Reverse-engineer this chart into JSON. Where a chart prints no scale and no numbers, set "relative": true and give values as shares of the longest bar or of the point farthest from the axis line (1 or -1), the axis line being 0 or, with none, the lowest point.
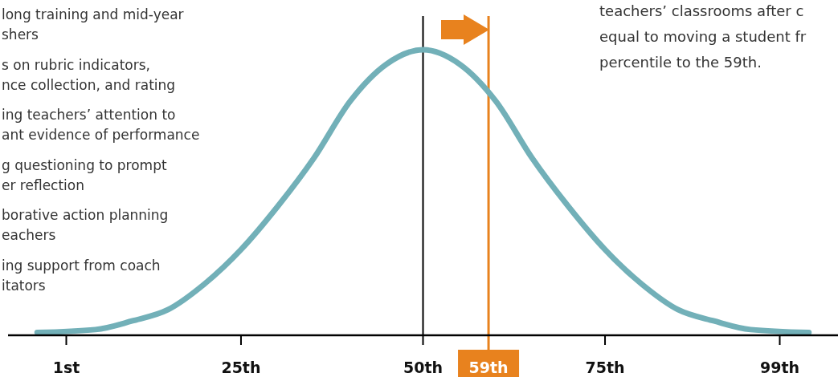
{
  "chart_data": {
    "type": "line",
    "relative": true,
    "x": [
      -3,
      5,
      10,
      15,
      20,
      25,
      30,
      35,
      40,
      45,
      50,
      55,
      60,
      65,
      70,
      75,
      80,
      85,
      90,
      95,
      103
    ],
    "series": [
      {
        "color": "#72b0b8",
        "values": [
          0.01,
          0.02,
          0.05,
          0.09,
          0.18,
          0.3,
          0.45,
          0.62,
          0.82,
          0.95,
          1,
          0.95,
          0.82,
          0.62,
          0.45,
          0.3,
          0.18,
          0.09,
          0.05,
          0.02,
          0.01
        ]
      }
    ],
    "xlim": [
      -7,
      107
    ],
    "xticks": [
      {
        "value": 1,
        "label": "1st"
      },
      {
        "value": 25,
        "label": "25th"
      },
      {
        "value": 50,
        "label": "50th"
      },
      {
        "value": 75,
        "label": "75th"
      },
      {
        "value": 99,
        "label": "99th"
      }
    ],
    "ref_lines": [
      {
        "axis": "x",
        "value": 50,
        "label": null,
        "color": "#000000"
      },
      {
        "axis": "x",
        "value": 59,
        "label": "59th",
        "color": "#e8821e"
      }
    ],
    "annotations": [
      "long training and mid-year\nshers",
      "s on rubric indicators,\nnce collection, and rating",
      "ing teachers’ attention to\nant evidence of performance",
      "g questioning to prompt\ner reflection",
      "borative action planning\neachers",
      "ing support from coach\nitators",
      "teachers’ classrooms after c\nequal to moving a student fr\npercentile to the 59th."
    ]
  }
}
